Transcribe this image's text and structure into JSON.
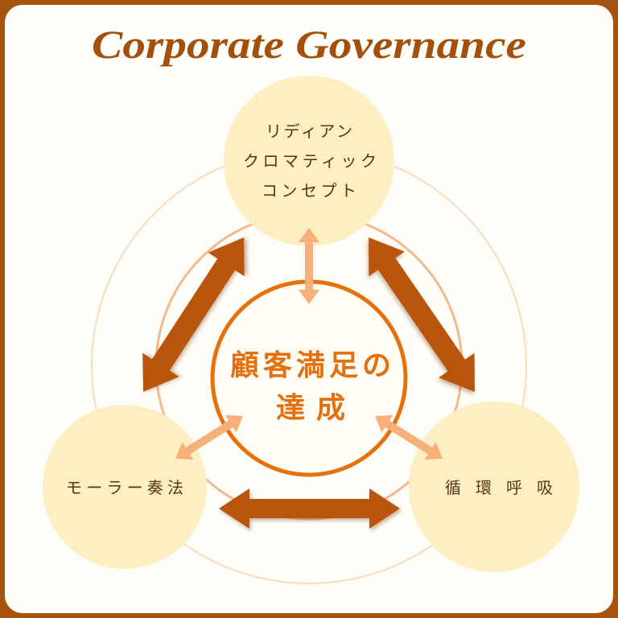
{
  "title": "Corporate Governance",
  "center": {
    "line1": "顧客満足の",
    "line2": "達成"
  },
  "nodes": {
    "top": {
      "line1": "リディアン",
      "line2": "クロマティック",
      "line3": "コンセプト"
    },
    "bottom_left": {
      "label": "モーラー奏法"
    },
    "bottom_right": {
      "label": "循 環 呼 吸"
    }
  },
  "colors": {
    "frame": "#a5530f",
    "title": "#a3500c",
    "center_ring": "#e8700a",
    "center_text": "#e3700c",
    "node_fill": "#fdefc2",
    "node_text": "#5b3216",
    "dark_arrow": "#b9540c",
    "light_arrow": "#f7b07a",
    "outer_ring": "#f6dcc0",
    "middle_ring": "#f3b98d"
  }
}
